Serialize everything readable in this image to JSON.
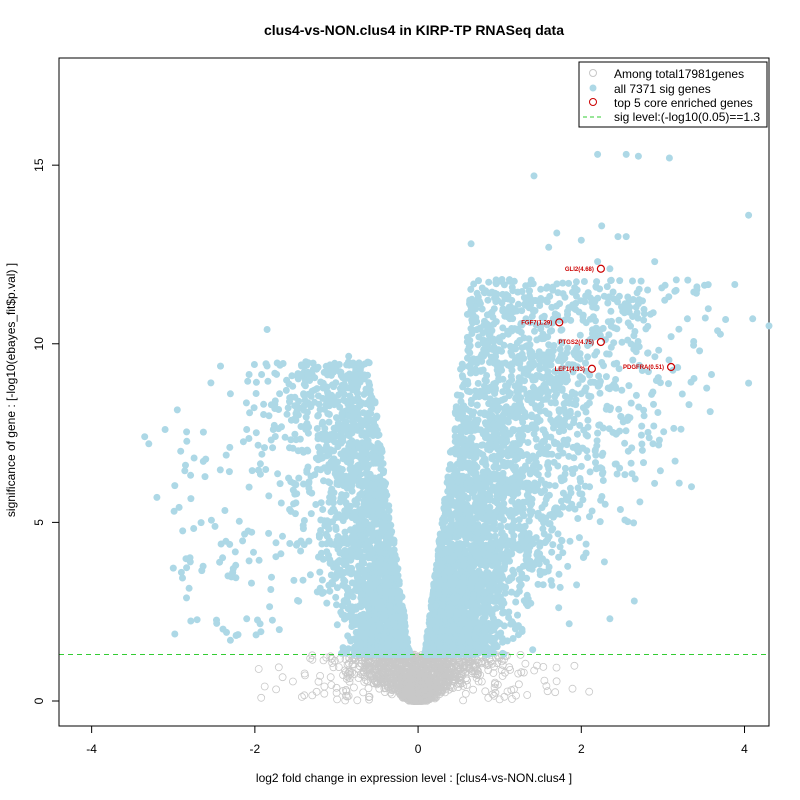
{
  "chart_data": {
    "type": "scatter",
    "title": "clus4-vs-NON.clus4 in KIRP-TP RNASeq data",
    "xlabel": "log2 fold change in expression level : [clus4-vs-NON.clus4 ]",
    "ylabel": "significance of gene : [-log10(ebayes_fit$p.val) ]",
    "xlim": [
      -4.4,
      4.3
    ],
    "ylim": [
      -0.7,
      18.0
    ],
    "xticks": [
      -4,
      -2,
      0,
      2,
      4
    ],
    "yticks": [
      0,
      5,
      10,
      15
    ],
    "legend": {
      "position": "top-right",
      "items": [
        {
          "label": "Among total17981genes",
          "symbol": "open-circle",
          "color": "#c8c8c8"
        },
        {
          "label": "all 7371 sig genes",
          "symbol": "filled-circle",
          "color": "#add8e6"
        },
        {
          "label": "top 5 core enriched genes",
          "symbol": "open-circle",
          "color": "#cc0000"
        },
        {
          "label": "sig level:(-log10(0.05)==1.3",
          "symbol": "dashed-line",
          "color": "#33cc33"
        }
      ]
    },
    "sig_level": 1.3,
    "colors": {
      "background_genes": "#c8c8c8",
      "sig_genes": "#add8e6",
      "core_genes": "#cc0000",
      "sig_line": "#33cc33"
    },
    "core_genes": [
      {
        "label": "GLI2(4.68)",
        "x": 2.24,
        "y": 12.1
      },
      {
        "label": "FGF7(1.29)",
        "x": 1.73,
        "y": 10.6
      },
      {
        "label": "PTGS2(4.75)",
        "x": 2.24,
        "y": 10.05
      },
      {
        "label": "LEF1(4.33)",
        "x": 2.13,
        "y": 9.3
      },
      {
        "label": "PDGFRA(0.51)",
        "x": 3.1,
        "y": 9.35
      }
    ],
    "highlight_sig_points": [
      [
        2.2,
        15.3
      ],
      [
        2.55,
        15.3
      ],
      [
        2.7,
        15.25
      ],
      [
        3.08,
        15.2
      ],
      [
        1.42,
        14.7
      ],
      [
        4.05,
        13.6
      ],
      [
        2.25,
        13.3
      ],
      [
        1.7,
        13.1
      ],
      [
        2.45,
        13.0
      ],
      [
        2.55,
        13.0
      ],
      [
        1.6,
        12.7
      ],
      [
        2.0,
        12.9
      ],
      [
        0.65,
        12.8
      ],
      [
        2.2,
        12.3
      ],
      [
        2.9,
        12.3
      ],
      [
        2.35,
        12.1
      ],
      [
        1.65,
        11.5
      ],
      [
        1.8,
        11.3
      ],
      [
        2.75,
        11.2
      ],
      [
        3.1,
        10.2
      ],
      [
        3.3,
        10.7
      ],
      [
        4.1,
        10.7
      ],
      [
        4.3,
        10.5
      ],
      [
        3.45,
        9.8
      ],
      [
        3.58,
        8.1
      ],
      [
        4.05,
        8.9
      ],
      [
        3.2,
        6.1
      ],
      [
        3.35,
        6.0
      ],
      [
        2.35,
        2.3
      ],
      [
        2.65,
        2.8
      ],
      [
        -3.35,
        7.4
      ],
      [
        -3.3,
        7.2
      ],
      [
        -3.1,
        7.6
      ],
      [
        -2.95,
        8.15
      ],
      [
        -3.2,
        5.7
      ],
      [
        -2.85,
        6.6
      ],
      [
        -2.1,
        7.6
      ],
      [
        -2.3,
        8.6
      ],
      [
        -1.85,
        10.4
      ],
      [
        -1.75,
        8.4
      ],
      [
        -2.9,
        3.6
      ],
      [
        -2.65,
        3.65
      ],
      [
        -2.3,
        1.7
      ],
      [
        -2.1,
        2.3
      ],
      [
        -1.7,
        2.0
      ],
      [
        -0.85,
        9.65
      ],
      [
        -0.8,
        9.4
      ],
      [
        -1.15,
        9.2
      ],
      [
        -1.05,
        8.85
      ]
    ]
  }
}
